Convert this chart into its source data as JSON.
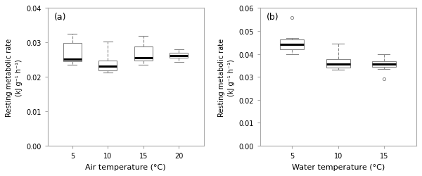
{
  "panel_a": {
    "label": "(a)",
    "xlabel": "Air temperature (°C)",
    "ylabel": "Resting metabolic rate\n(kJ g⁻¹ h⁻¹)",
    "ylim": [
      0.0,
      0.04
    ],
    "yticks": [
      0.0,
      0.01,
      0.02,
      0.03,
      0.04
    ],
    "xticks": [
      1,
      2,
      3,
      4
    ],
    "xticklabels": [
      "5",
      "10",
      "15",
      "20"
    ],
    "boxes": [
      {
        "whislo": 0.0235,
        "q1": 0.0245,
        "med": 0.0252,
        "q3": 0.0298,
        "whishi": 0.0325,
        "fliers": []
      },
      {
        "whislo": 0.0213,
        "q1": 0.0218,
        "med": 0.0232,
        "q3": 0.0248,
        "whishi": 0.0302,
        "fliers": []
      },
      {
        "whislo": 0.0235,
        "q1": 0.0248,
        "med": 0.0255,
        "q3": 0.0288,
        "whishi": 0.0318,
        "fliers": []
      },
      {
        "whislo": 0.0243,
        "q1": 0.0255,
        "med": 0.0262,
        "q3": 0.027,
        "whishi": 0.028,
        "fliers": []
      }
    ]
  },
  "panel_b": {
    "label": "(b)",
    "xlabel": "Water temperature (°C)",
    "ylabel": "Resting metabolic rate\n(kJ g⁻¹ h⁻¹)",
    "ylim": [
      0.0,
      0.06
    ],
    "yticks": [
      0.0,
      0.01,
      0.02,
      0.03,
      0.04,
      0.05,
      0.06
    ],
    "xticks": [
      1,
      2,
      3
    ],
    "xticklabels": [
      "5",
      "10",
      "15"
    ],
    "boxes": [
      {
        "whislo": 0.04,
        "q1": 0.042,
        "med": 0.0442,
        "q3": 0.0462,
        "whishi": 0.047,
        "fliers": [
          0.0558
        ]
      },
      {
        "whislo": 0.033,
        "q1": 0.034,
        "med": 0.0355,
        "q3": 0.0378,
        "whishi": 0.0445,
        "fliers": []
      },
      {
        "whislo": 0.0335,
        "q1": 0.0345,
        "med": 0.0355,
        "q3": 0.0368,
        "whishi": 0.04,
        "fliers": [
          0.0292
        ]
      }
    ]
  },
  "background_color": "#ffffff",
  "panel_bg_color": "#ffffff",
  "box_edge_color": "#888888",
  "whisker_color": "#888888",
  "median_color": "#000000",
  "flier_color": "#888888",
  "fontsize": 7,
  "label_fontsize": 8,
  "tick_fontsize": 7
}
